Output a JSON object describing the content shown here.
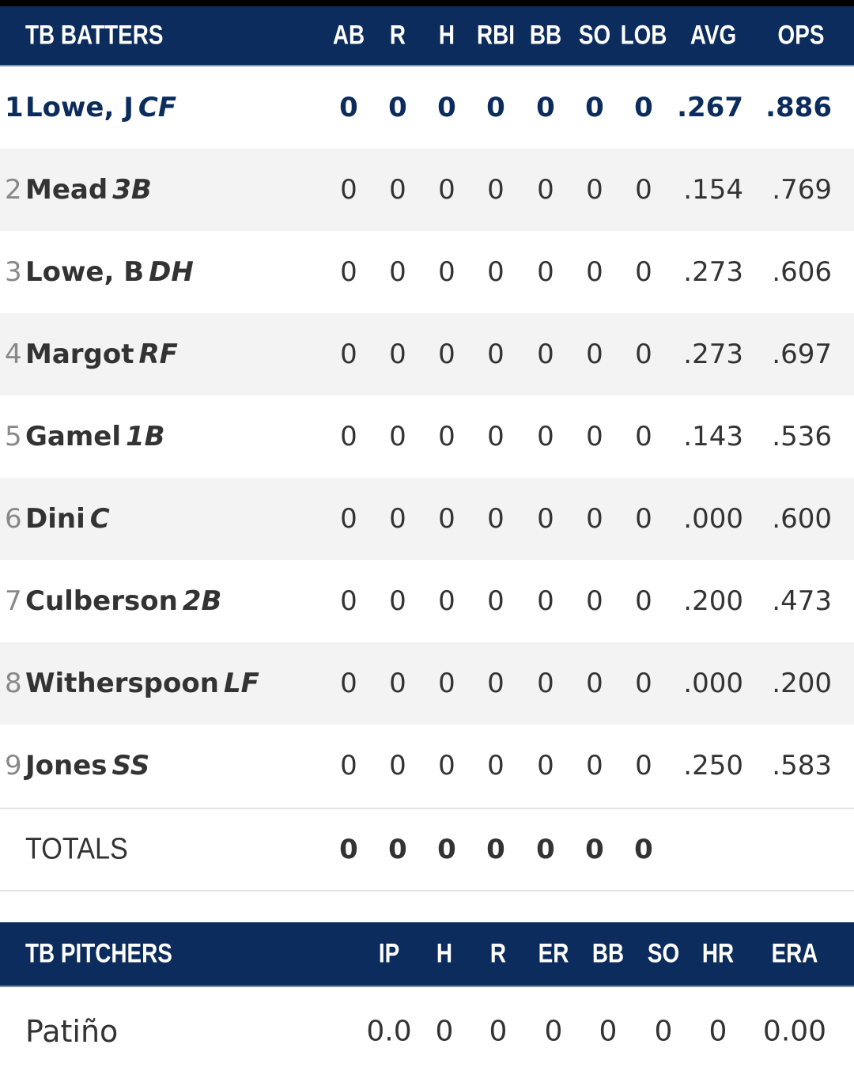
{
  "batters": {
    "title": "TB BATTERS",
    "columns": [
      "AB",
      "R",
      "H",
      "RBI",
      "BB",
      "SO",
      "LOB",
      "AVG",
      "OPS"
    ],
    "rows": [
      {
        "order": "1",
        "name": "Lowe, J",
        "pos": "CF",
        "stats": [
          "0",
          "0",
          "0",
          "0",
          "0",
          "0",
          "0",
          ".267",
          ".886"
        ],
        "highlighted": true
      },
      {
        "order": "2",
        "name": "Mead",
        "pos": "3B",
        "stats": [
          "0",
          "0",
          "0",
          "0",
          "0",
          "0",
          "0",
          ".154",
          ".769"
        ]
      },
      {
        "order": "3",
        "name": "Lowe, B",
        "pos": "DH",
        "stats": [
          "0",
          "0",
          "0",
          "0",
          "0",
          "0",
          "0",
          ".273",
          ".606"
        ]
      },
      {
        "order": "4",
        "name": "Margot",
        "pos": "RF",
        "stats": [
          "0",
          "0",
          "0",
          "0",
          "0",
          "0",
          "0",
          ".273",
          ".697"
        ]
      },
      {
        "order": "5",
        "name": "Gamel",
        "pos": "1B",
        "stats": [
          "0",
          "0",
          "0",
          "0",
          "0",
          "0",
          "0",
          ".143",
          ".536"
        ]
      },
      {
        "order": "6",
        "name": "Dini",
        "pos": "C",
        "stats": [
          "0",
          "0",
          "0",
          "0",
          "0",
          "0",
          "0",
          ".000",
          ".600"
        ]
      },
      {
        "order": "7",
        "name": "Culberson",
        "pos": "2B",
        "stats": [
          "0",
          "0",
          "0",
          "0",
          "0",
          "0",
          "0",
          ".200",
          ".473"
        ]
      },
      {
        "order": "8",
        "name": "Witherspoon",
        "pos": "LF",
        "stats": [
          "0",
          "0",
          "0",
          "0",
          "0",
          "0",
          "0",
          ".000",
          ".200"
        ]
      },
      {
        "order": "9",
        "name": "Jones",
        "pos": "SS",
        "stats": [
          "0",
          "0",
          "0",
          "0",
          "0",
          "0",
          "0",
          ".250",
          ".583"
        ]
      }
    ],
    "totals": {
      "label": "TOTALS",
      "stats": [
        "0",
        "0",
        "0",
        "0",
        "0",
        "0",
        "0"
      ]
    }
  },
  "pitchers": {
    "title": "TB PITCHERS",
    "columns": [
      "IP",
      "H",
      "R",
      "ER",
      "BB",
      "SO",
      "HR",
      "ERA"
    ],
    "rows": [
      {
        "name": "Patiño",
        "stats": [
          "0.0",
          "0",
          "0",
          "0",
          "0",
          "0",
          "0",
          "0.00"
        ]
      }
    ]
  },
  "colors": {
    "header_bg": "#0b2c5c",
    "highlight_text": "#0b2c5c",
    "alt_row": "#f3f3f3"
  }
}
